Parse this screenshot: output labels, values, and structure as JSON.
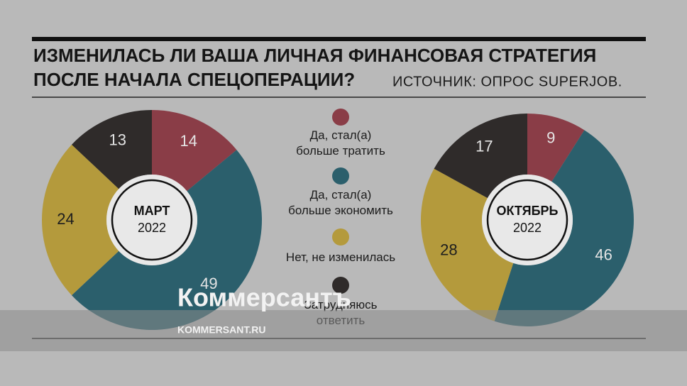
{
  "header": {
    "title_lines": [
      "ИЗМЕНИЛАСЬ ЛИ ВАША ЛИЧНАЯ ФИНАНСОВАЯ СТРАТЕГИЯ",
      "ПОСЛЕ НАЧАЛА СПЕЦОПЕРАЦИИ?"
    ],
    "source": "ИСТОЧНИК: ОПРОС SUPERJOB."
  },
  "legend": {
    "series": [
      {
        "name": "Да, стал(а)\nбольше тратить",
        "color": "#8a3d47"
      },
      {
        "name": "Да, стал(а)\nбольше экономить",
        "color": "#2b5f6c"
      },
      {
        "name": "Нет, не изменилась",
        "color": "#b49a3c"
      },
      {
        "name": "Затрудняюсь\nответить",
        "color": "#2f2b2a"
      }
    ]
  },
  "chart_data": [
    {
      "type": "pie",
      "center_title": "МАРТ",
      "center_subtitle": "2022",
      "values": [
        14,
        49,
        24,
        13
      ]
    },
    {
      "type": "pie",
      "center_title": "ОКТЯБРЬ",
      "center_subtitle": "2022",
      "values": [
        9,
        46,
        28,
        17
      ]
    }
  ],
  "watermark": {
    "brand": "Коммерсантъ",
    "site": "KOMMERSANT.RU"
  }
}
